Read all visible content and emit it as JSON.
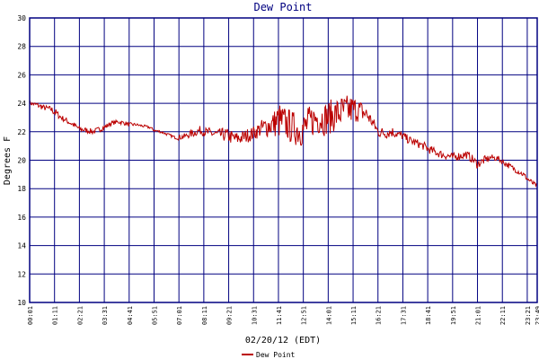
{
  "chart_data": {
    "type": "line",
    "title": "Dew Point",
    "xlabel": "02/20/12 (EDT)",
    "ylabel": "Degrees F",
    "ylim": [
      10,
      30
    ],
    "yticks": [
      10,
      12,
      14,
      16,
      18,
      20,
      22,
      24,
      26,
      28,
      30
    ],
    "xticks": [
      "00:01",
      "01:11",
      "02:21",
      "03:31",
      "04:41",
      "05:51",
      "07:01",
      "08:11",
      "09:21",
      "10:31",
      "11:41",
      "12:51",
      "14:01",
      "15:11",
      "16:21",
      "17:31",
      "18:41",
      "19:51",
      "21:01",
      "22:11",
      "23:21",
      "23:49"
    ],
    "grid": true,
    "legend_position": "bottom",
    "series_color": "#bb0000",
    "frame_color": "#000080",
    "series": [
      {
        "name": "Dew Point",
        "x": [
          "00:01",
          "00:20",
          "00:40",
          "01:00",
          "01:11",
          "01:30",
          "01:50",
          "02:10",
          "02:21",
          "02:40",
          "03:00",
          "03:20",
          "03:31",
          "03:50",
          "04:10",
          "04:30",
          "04:41",
          "05:00",
          "05:20",
          "05:40",
          "05:51",
          "06:10",
          "06:30",
          "06:50",
          "07:01",
          "07:20",
          "07:40",
          "08:00",
          "08:11",
          "08:30",
          "08:50",
          "09:10",
          "09:21",
          "09:40",
          "10:00",
          "10:20",
          "10:31",
          "10:50",
          "11:10",
          "11:30",
          "11:41",
          "12:00",
          "12:20",
          "12:40",
          "12:51",
          "13:10",
          "13:30",
          "13:50",
          "14:01",
          "14:20",
          "14:40",
          "15:00",
          "15:11",
          "15:30",
          "15:50",
          "16:10",
          "16:21",
          "16:40",
          "17:00",
          "17:20",
          "17:31",
          "17:50",
          "18:10",
          "18:30",
          "18:41",
          "19:00",
          "19:20",
          "19:40",
          "19:51",
          "20:10",
          "20:30",
          "20:50",
          "21:01",
          "21:20",
          "21:40",
          "22:00",
          "22:11",
          "22:30",
          "22:50",
          "23:10",
          "23:21",
          "23:35",
          "23:49"
        ],
        "y": [
          24.0,
          23.9,
          23.7,
          23.6,
          23.4,
          23.0,
          22.7,
          22.4,
          22.2,
          22.1,
          22.0,
          22.2,
          22.3,
          22.6,
          22.7,
          22.6,
          22.5,
          22.5,
          22.4,
          22.3,
          22.1,
          22.0,
          21.8,
          21.6,
          21.6,
          21.7,
          21.9,
          22.1,
          22.0,
          21.9,
          21.8,
          21.8,
          21.7,
          21.5,
          21.6,
          21.8,
          21.9,
          22.2,
          22.4,
          22.6,
          22.8,
          22.6,
          22.3,
          22.1,
          22.2,
          22.7,
          23.0,
          22.9,
          23.0,
          23.2,
          23.4,
          23.5,
          23.6,
          23.5,
          23.2,
          22.5,
          22.0,
          21.9,
          22.0,
          21.8,
          21.7,
          21.4,
          21.2,
          21.0,
          20.8,
          20.6,
          20.4,
          20.3,
          20.2,
          20.3,
          20.4,
          20.0,
          19.7,
          20.0,
          20.2,
          20.1,
          19.9,
          19.6,
          19.3,
          19.0,
          18.7,
          18.4,
          18.2
        ],
        "noise": [
          0.1,
          0.2,
          0.2,
          0.2,
          0.3,
          0.2,
          0.2,
          0.2,
          0.2,
          0.2,
          0.2,
          0.2,
          0.2,
          0.15,
          0.15,
          0.15,
          0.15,
          0.1,
          0.1,
          0.1,
          0.1,
          0.1,
          0.1,
          0.1,
          0.2,
          0.2,
          0.3,
          0.3,
          0.3,
          0.4,
          0.4,
          0.5,
          0.5,
          0.5,
          0.5,
          0.5,
          0.5,
          0.6,
          0.8,
          1.0,
          1.3,
          1.2,
          1.2,
          1.2,
          1.2,
          1.2,
          1.2,
          1.2,
          1.2,
          1.2,
          1.2,
          1.1,
          1.0,
          0.8,
          0.6,
          0.4,
          0.4,
          0.4,
          0.4,
          0.3,
          0.3,
          0.3,
          0.3,
          0.3,
          0.3,
          0.3,
          0.3,
          0.3,
          0.3,
          0.3,
          0.3,
          0.3,
          0.3,
          0.3,
          0.2,
          0.2,
          0.2,
          0.2,
          0.2,
          0.2,
          0.2,
          0.2,
          0.1
        ]
      }
    ]
  }
}
